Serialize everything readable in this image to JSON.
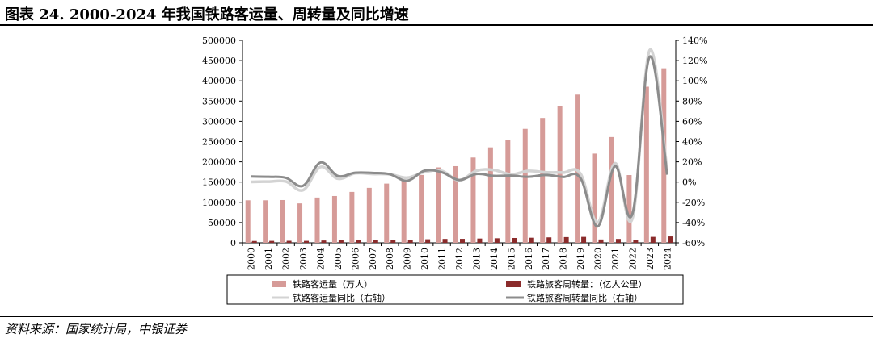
{
  "title": "图表 24. 2000-2024 年我国铁路客运量、周转量及同比增速",
  "source": "资料来源：国家统计局，中银证券",
  "colors": {
    "passengers_bar": "#d69b98",
    "turnover_bar": "#8b2b2b",
    "passengers_yoy_line": "#d3d3d3",
    "turnover_yoy_line": "#8c8c8c"
  },
  "chart_data": {
    "type": "bar",
    "categories": [
      "2000",
      "2001",
      "2002",
      "2003",
      "2004",
      "2005",
      "2006",
      "2007",
      "2008",
      "2009",
      "2010",
      "2011",
      "2012",
      "2013",
      "2014",
      "2015",
      "2016",
      "2017",
      "2018",
      "2019",
      "2020",
      "2021",
      "2022",
      "2023",
      "2024"
    ],
    "y_left": {
      "min": 0,
      "max": 500000,
      "step": 50000,
      "ticks": [
        "0",
        "50000",
        "100000",
        "150000",
        "200000",
        "250000",
        "300000",
        "350000",
        "400000",
        "450000",
        "500000"
      ]
    },
    "y_right": {
      "min": -60,
      "max": 140,
      "step": 20,
      "ticks": [
        "-60%",
        "-40%",
        "-20%",
        "0%",
        "20%",
        "40%",
        "60%",
        "80%",
        "100%",
        "120%",
        "140%"
      ]
    },
    "series": [
      {
        "name": "铁路客运量（万人）",
        "type": "bar",
        "axis": "left",
        "values": [
          105000,
          105000,
          105600,
          97300,
          111800,
          115600,
          125700,
          135700,
          146200,
          152500,
          167600,
          186200,
          189300,
          210600,
          235700,
          253500,
          281400,
          308400,
          337500,
          366000,
          220300,
          261200,
          167300,
          385500,
          431000
        ]
      },
      {
        "name": "铁路旅客周转量：（亿人公里）",
        "type": "bar",
        "axis": "left",
        "values": [
          4533,
          4767,
          4969,
          4789,
          5712,
          6062,
          6622,
          7216,
          7779,
          7879,
          8762,
          9612,
          9812,
          10596,
          11242,
          11961,
          12579,
          13457,
          14147,
          14707,
          8266,
          9568,
          6578,
          14729,
          15799
        ]
      },
      {
        "name": "铁路客运量同比（右轴）",
        "type": "line",
        "axis": "right",
        "values": [
          0.2,
          0.5,
          0.6,
          -7.9,
          14.9,
          3.4,
          8.7,
          8.0,
          7.7,
          4.3,
          9.9,
          11.1,
          1.7,
          11.2,
          11.9,
          7.6,
          11.0,
          9.6,
          9.4,
          8.4,
          -39.8,
          18.6,
          -35.9,
          130.4,
          11.8
        ]
      },
      {
        "name": "铁路旅客周转量同比（右轴）",
        "type": "line",
        "axis": "right",
        "values": [
          5.5,
          5.2,
          4.2,
          -3.6,
          19.3,
          6.1,
          9.2,
          9.0,
          7.8,
          1.3,
          11.2,
          9.7,
          2.1,
          8.0,
          6.1,
          6.4,
          5.2,
          7.0,
          5.1,
          4.0,
          -43.8,
          15.7,
          -31.3,
          123.9,
          7.3
        ]
      }
    ],
    "legend": "bottom"
  }
}
